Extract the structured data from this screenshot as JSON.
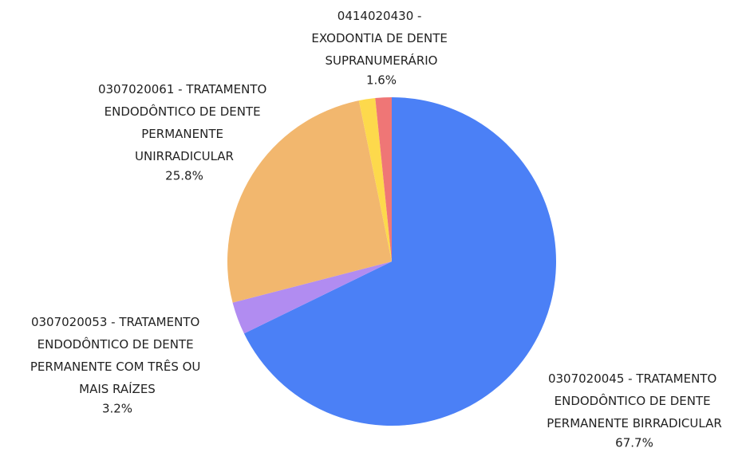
{
  "chart_data": {
    "type": "pie",
    "categories": [
      "0307020045 - TRATAMENTO ENDODÔNTICO DE DENTE PERMANENTE BIRRADICULAR",
      "0307020053 - TRATAMENTO ENDODÔNTICO DE DENTE PERMANENTE COM TRÊS OU MAIS RAÍZES",
      "0307020061 - TRATAMENTO ENDODÔNTICO DE DENTE PERMANENTE UNIRRADICULAR",
      null,
      "0414020430 - EXODONTIA DE DENTE SUPRANUMERÁRIO"
    ],
    "values": [
      67.7,
      3.2,
      25.8,
      1.6,
      1.6
    ],
    "value_labels": [
      "67.7%",
      "3.2%",
      "25.8%",
      null,
      "1.6%"
    ],
    "colors": [
      "#4b80f6",
      "#b18cf1",
      "#f2b76e",
      "#fdd94c",
      "#ef7676"
    ]
  }
}
